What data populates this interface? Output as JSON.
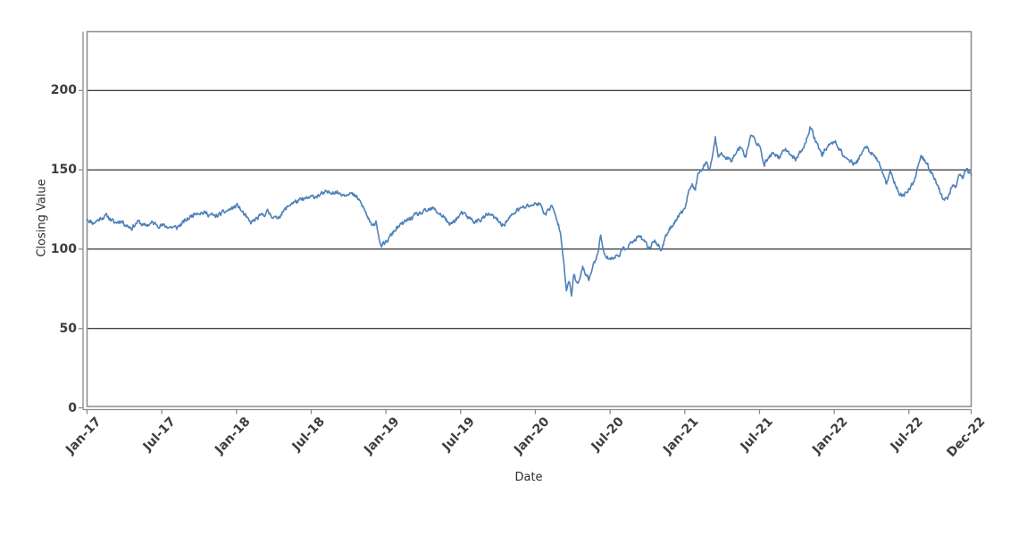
{
  "chart_data": {
    "type": "line",
    "title": "",
    "xlabel": "Date",
    "ylabel": "Closing Value",
    "legend": "none",
    "grid": "horizontal-black-lines",
    "x_tick_labels": [
      "Jan-17",
      "Jul-17",
      "Jan-18",
      "Jul-18",
      "Jan-19",
      "Jul-19",
      "Jan-20",
      "Jul-20",
      "Jan-21",
      "Jul-21",
      "Jan-22",
      "Jul-22",
      "Dec-22"
    ],
    "x_tick_months": [
      0,
      6,
      12,
      18,
      24,
      30,
      36,
      42,
      48,
      54,
      60,
      66,
      71
    ],
    "y_tick_labels": [
      "0",
      "50",
      "100",
      "150",
      "200"
    ],
    "y_tick_values": [
      0,
      50,
      100,
      150,
      200
    ],
    "ylim": [
      0,
      237
    ],
    "xlim_months_since_jan_2017": [
      0,
      71
    ],
    "colors": {
      "line": "#4e81ba",
      "gridline": "#000000",
      "frame": "#8a8a8a",
      "tick_label": "#3d3d3d",
      "axis_title": "#2b2b2b",
      "background": "#ffffff"
    },
    "series": [
      {
        "name": "Closing Value",
        "x_unit": "months since Jan-2017",
        "anchors": [
          [
            0,
            119
          ],
          [
            0.5,
            116.5
          ],
          [
            1.2,
            120
          ],
          [
            1.6,
            121
          ],
          [
            2.2,
            116.5
          ],
          [
            2.7,
            118
          ],
          [
            3.2,
            115
          ],
          [
            3.6,
            113.5
          ],
          [
            4.1,
            117.5
          ],
          [
            4.6,
            114.5
          ],
          [
            5.2,
            116.5
          ],
          [
            5.9,
            115
          ],
          [
            6.6,
            114
          ],
          [
            7.2,
            113.5
          ],
          [
            8.0,
            118.5
          ],
          [
            8.8,
            123.5
          ],
          [
            9.6,
            122.5
          ],
          [
            10.3,
            120.5
          ],
          [
            11.2,
            124
          ],
          [
            12.1,
            127.5
          ],
          [
            13.1,
            116.5
          ],
          [
            14.0,
            121
          ],
          [
            14.5,
            123.5
          ],
          [
            15.2,
            119
          ],
          [
            16.4,
            129
          ],
          [
            17.5,
            131.5
          ],
          [
            18.6,
            134
          ],
          [
            19.7,
            136.5
          ],
          [
            20.7,
            134.5
          ],
          [
            21.0,
            136
          ],
          [
            21.8,
            131.5
          ],
          [
            22.3,
            124.5
          ],
          [
            22.9,
            113.5
          ],
          [
            23.2,
            118
          ],
          [
            23.6,
            101.5
          ],
          [
            24.0,
            104
          ],
          [
            24.7,
            112
          ],
          [
            25.5,
            117
          ],
          [
            26.3,
            121
          ],
          [
            27.8,
            125.5
          ],
          [
            28.7,
            120
          ],
          [
            29.1,
            115
          ],
          [
            30.1,
            122.5
          ],
          [
            31.2,
            117
          ],
          [
            32.3,
            122
          ],
          [
            33.0,
            118
          ],
          [
            33.4,
            115
          ],
          [
            34.5,
            124.5
          ],
          [
            35.5,
            127.5
          ],
          [
            36.3,
            129
          ],
          [
            36.8,
            122
          ],
          [
            37.3,
            127.5
          ],
          [
            38.0,
            112
          ],
          [
            38.3,
            92
          ],
          [
            38.5,
            72.5
          ],
          [
            38.7,
            80
          ],
          [
            38.9,
            71.5
          ],
          [
            39.1,
            84
          ],
          [
            39.4,
            77
          ],
          [
            39.8,
            88
          ],
          [
            40.3,
            81
          ],
          [
            41.0,
            97.5
          ],
          [
            41.25,
            109
          ],
          [
            41.6,
            95
          ],
          [
            42.3,
            94
          ],
          [
            43.4,
            102
          ],
          [
            44.4,
            108
          ],
          [
            45.1,
            100.5
          ],
          [
            45.6,
            106
          ],
          [
            46.1,
            99.5
          ],
          [
            46.6,
            110
          ],
          [
            47.3,
            119
          ],
          [
            47.8,
            124
          ],
          [
            48.1,
            128
          ],
          [
            48.35,
            139
          ],
          [
            48.6,
            140.5
          ],
          [
            48.85,
            137.5
          ],
          [
            49.1,
            148
          ],
          [
            49.45,
            151
          ],
          [
            49.7,
            153.5
          ],
          [
            49.95,
            150
          ],
          [
            50.2,
            157
          ],
          [
            50.45,
            171
          ],
          [
            50.7,
            157.5
          ],
          [
            51.0,
            160.5
          ],
          [
            51.35,
            158
          ],
          [
            51.7,
            156
          ],
          [
            52.0,
            160
          ],
          [
            52.5,
            165
          ],
          [
            52.9,
            158.5
          ],
          [
            53.3,
            172.5
          ],
          [
            54.0,
            164
          ],
          [
            54.4,
            154
          ],
          [
            55.1,
            161
          ],
          [
            55.6,
            157.5
          ],
          [
            56.1,
            163
          ],
          [
            56.9,
            156.5
          ],
          [
            57.6,
            165
          ],
          [
            58.1,
            177
          ],
          [
            58.6,
            167
          ],
          [
            59.0,
            159.5
          ],
          [
            59.5,
            165
          ],
          [
            60.1,
            168
          ],
          [
            60.7,
            159.5
          ],
          [
            61.2,
            156
          ],
          [
            61.7,
            153
          ],
          [
            62.2,
            161
          ],
          [
            62.6,
            164
          ],
          [
            63.1,
            159.5
          ],
          [
            63.5,
            155.5
          ],
          [
            63.9,
            149
          ],
          [
            64.2,
            140.5
          ],
          [
            64.5,
            148
          ],
          [
            64.9,
            141.5
          ],
          [
            65.3,
            134
          ],
          [
            65.8,
            135
          ],
          [
            66.4,
            143
          ],
          [
            67.0,
            159.5
          ],
          [
            67.6,
            151
          ],
          [
            68.0,
            146
          ],
          [
            68.3,
            140.5
          ],
          [
            68.8,
            130.5
          ],
          [
            69.2,
            133
          ],
          [
            69.5,
            141.5
          ],
          [
            69.8,
            139
          ],
          [
            70.1,
            148
          ],
          [
            70.3,
            145.5
          ],
          [
            70.6,
            149
          ],
          [
            71,
            147.5
          ]
        ]
      }
    ],
    "render": {
      "points_per_month": 21,
      "noise_amplitude": 1.25,
      "noise_persistence": 0.5,
      "seed": 11
    }
  }
}
